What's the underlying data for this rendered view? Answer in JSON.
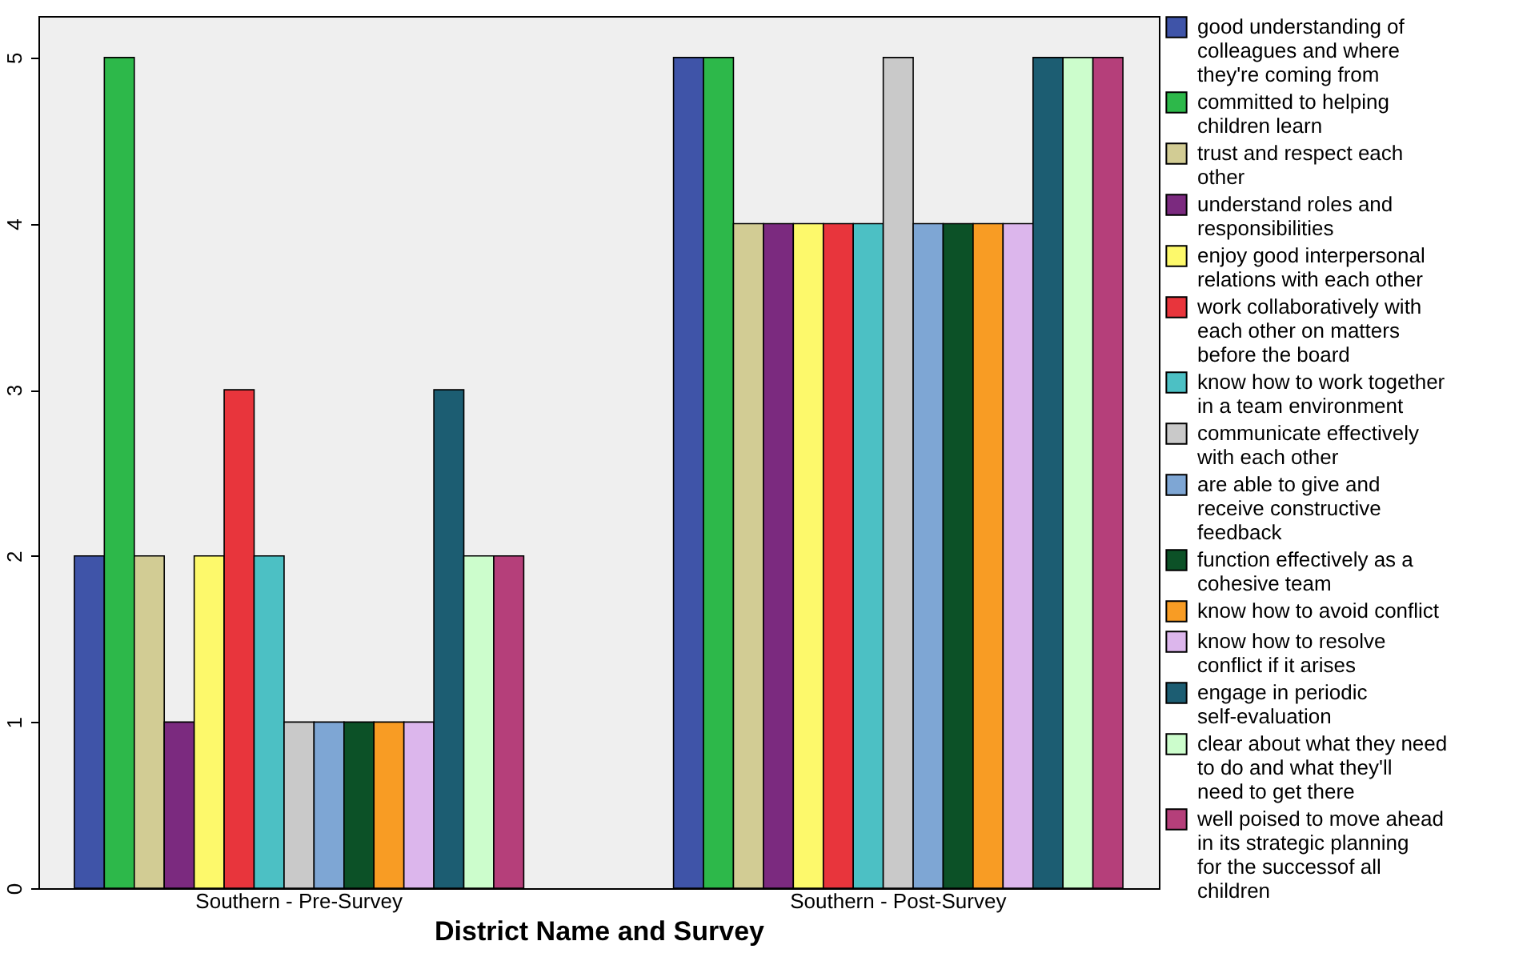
{
  "chart_data": {
    "type": "bar",
    "xlabel": "District Name and Survey",
    "categories": [
      "Southern - Pre-Survey",
      "Southern - Post-Survey"
    ],
    "ylim": [
      0,
      5.25
    ],
    "yticks": [
      0,
      1,
      2,
      3,
      4,
      5
    ],
    "grid": false,
    "legend": "right",
    "series": [
      {
        "name": "good understanding of colleagues and where they're coming from",
        "color": "#3f54a8",
        "values": [
          2,
          5
        ]
      },
      {
        "name": "committed to helping children learn",
        "color": "#2db84a",
        "values": [
          5,
          5
        ]
      },
      {
        "name": "trust and respect each other",
        "color": "#d2cc94",
        "values": [
          2,
          4
        ]
      },
      {
        "name": "understand roles and responsibilities",
        "color": "#7b2a7f",
        "values": [
          1,
          4
        ]
      },
      {
        "name": "enjoy good interpersonal relations with each other",
        "color": "#fdf96b",
        "values": [
          2,
          4
        ]
      },
      {
        "name": "work collaboratively with each other on matters before the board",
        "color": "#e8353c",
        "values": [
          3,
          4
        ]
      },
      {
        "name": "know how to work together in a team environment",
        "color": "#4cc0c4",
        "values": [
          2,
          4
        ]
      },
      {
        "name": "communicate effectively with each other",
        "color": "#c9c9c9",
        "values": [
          1,
          5
        ]
      },
      {
        "name": "are able to give and receive constructive feedback",
        "color": "#7ea6d4",
        "values": [
          1,
          4
        ]
      },
      {
        "name": "function effectively as a cohesive team",
        "color": "#0c5127",
        "values": [
          1,
          4
        ]
      },
      {
        "name": "know how to avoid conflict",
        "color": "#f89c24",
        "values": [
          1,
          4
        ]
      },
      {
        "name": "know how to resolve conflict if it arises",
        "color": "#dcb6ec",
        "values": [
          1,
          4
        ]
      },
      {
        "name": "engage in periodic self-evaluation",
        "color": "#1c5d72",
        "values": [
          3,
          5
        ]
      },
      {
        "name": "clear about what they need to do and what they'll need to get there",
        "color": "#ccfdcc",
        "values": [
          2,
          5
        ]
      },
      {
        "name": "well poised to move ahead in its strategic planning for the successof all children",
        "color": "#b53f7a",
        "values": [
          2,
          5
        ]
      }
    ]
  }
}
